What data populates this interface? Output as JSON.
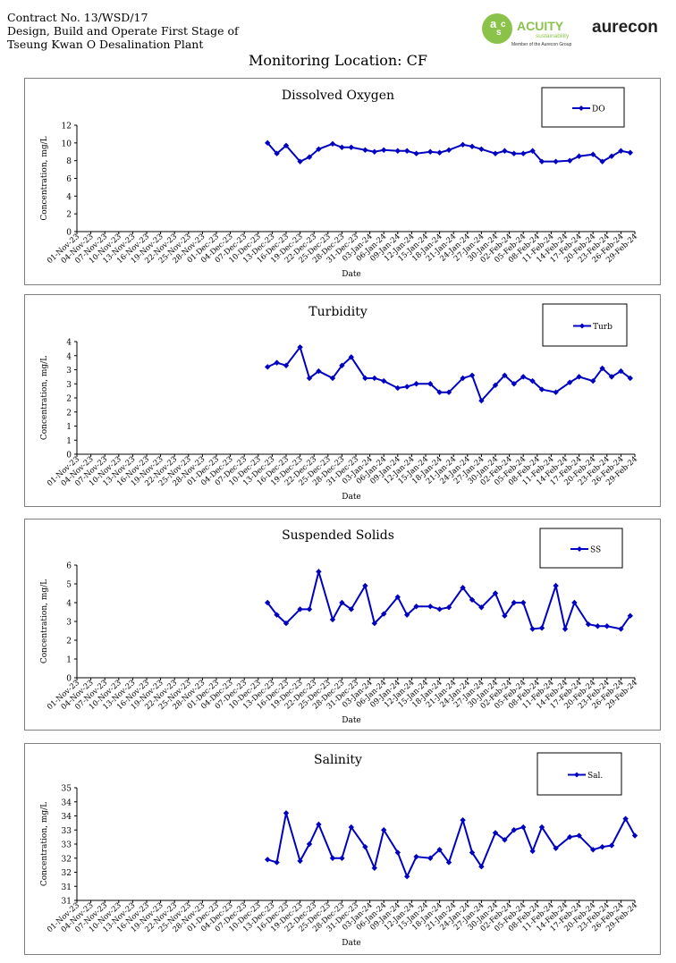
{
  "header": {
    "line1": "Contract No. 13/WSD/17",
    "line2": "Design, Build and Operate First Stage of",
    "line3": "Tseung Kwan O Desalination Plant"
  },
  "logos": {
    "acuity_name": "ACUITY",
    "acuity_sub": "sustainability",
    "acuity_tag": "Member of the Aurecon Group",
    "aurecon": "aurecon",
    "acuity_color": "#8bc34a",
    "aurecon_color": "#222222"
  },
  "page_title": "Monitoring Location: CF",
  "series_color": "#0000c0",
  "chart_data": [
    {
      "type": "line",
      "title": "Dissolved Oxygen",
      "xlabel": "Date",
      "ylabel": "Concentration, mg/L",
      "ylim": [
        0,
        12
      ],
      "yticks": [
        "0",
        "2",
        "4",
        "6",
        "8",
        "10",
        "12"
      ],
      "categories": [
        "01-Nov-23",
        "04-Nov-23",
        "07-Nov-23",
        "10-Nov-23",
        "13-Nov-23",
        "16-Nov-23",
        "19-Nov-23",
        "22-Nov-23",
        "25-Nov-23",
        "28-Nov-23",
        "01-Dec-23",
        "04-Dec-23",
        "07-Dec-23",
        "10-Dec-23",
        "13-Dec-23",
        "16-Dec-23",
        "19-Dec-23",
        "22-Dec-23",
        "25-Dec-23",
        "28-Dec-23",
        "31-Dec-23",
        "03-Jan-24",
        "06-Jan-24",
        "09-Jan-24",
        "12-Jan-24",
        "15-Jan-24",
        "18-Jan-24",
        "21-Jan-24",
        "24-Jan-24",
        "27-Jan-24",
        "30-Jan-24",
        "02-Feb-24",
        "05-Feb-24",
        "08-Feb-24",
        "11-Feb-24",
        "14-Feb-24",
        "17-Feb-24",
        "20-Feb-24",
        "23-Feb-24",
        "26-Feb-24",
        "29-Feb-24"
      ],
      "legend": "DO",
      "legend_position": "top-right",
      "series": [
        {
          "name": "DO",
          "points": [
            [
              "12-Dec-23",
              10.0
            ],
            [
              "14-Dec-23",
              8.8
            ],
            [
              "16-Dec-23",
              9.7
            ],
            [
              "19-Dec-23",
              7.9
            ],
            [
              "21-Dec-23",
              8.4
            ],
            [
              "23-Dec-23",
              9.3
            ],
            [
              "26-Dec-23",
              9.9
            ],
            [
              "28-Dec-23",
              9.5
            ],
            [
              "30-Dec-23",
              9.5
            ],
            [
              "02-Jan-24",
              9.2
            ],
            [
              "04-Jan-24",
              9.0
            ],
            [
              "06-Jan-24",
              9.2
            ],
            [
              "09-Jan-24",
              9.1
            ],
            [
              "11-Jan-24",
              9.1
            ],
            [
              "13-Jan-24",
              8.8
            ],
            [
              "16-Jan-24",
              9.0
            ],
            [
              "18-Jan-24",
              8.9
            ],
            [
              "20-Jan-24",
              9.2
            ],
            [
              "23-Jan-24",
              9.8
            ],
            [
              "25-Jan-24",
              9.6
            ],
            [
              "27-Jan-24",
              9.3
            ],
            [
              "30-Jan-24",
              8.8
            ],
            [
              "01-Feb-24",
              9.1
            ],
            [
              "03-Feb-24",
              8.8
            ],
            [
              "05-Feb-24",
              8.8
            ],
            [
              "07-Feb-24",
              9.1
            ],
            [
              "09-Feb-24",
              7.9
            ],
            [
              "12-Feb-24",
              7.9
            ],
            [
              "15-Feb-24",
              8.0
            ],
            [
              "17-Feb-24",
              8.5
            ],
            [
              "20-Feb-24",
              8.7
            ],
            [
              "22-Feb-24",
              7.9
            ],
            [
              "24-Feb-24",
              8.5
            ],
            [
              "26-Feb-24",
              9.1
            ],
            [
              "28-Feb-24",
              8.9
            ]
          ]
        }
      ]
    },
    {
      "type": "line",
      "title": "Turbidity",
      "xlabel": "Date",
      "ylabel": "Concentration, mg/L",
      "ylim": [
        0,
        4
      ],
      "yticks": [
        "0",
        "1",
        "1",
        "2",
        "2",
        "3",
        "3",
        "4",
        "4"
      ],
      "categories": [
        "01-Nov-23",
        "04-Nov-23",
        "07-Nov-23",
        "10-Nov-23",
        "13-Nov-23",
        "16-Nov-23",
        "19-Nov-23",
        "22-Nov-23",
        "25-Nov-23",
        "28-Nov-23",
        "01-Dec-23",
        "04-Dec-23",
        "07-Dec-23",
        "10-Dec-23",
        "13-Dec-23",
        "16-Dec-23",
        "19-Dec-23",
        "22-Dec-23",
        "25-Dec-23",
        "28-Dec-23",
        "31-Dec-23",
        "03-Jan-24",
        "06-Jan-24",
        "09-Jan-24",
        "12-Jan-24",
        "15-Jan-24",
        "18-Jan-24",
        "21-Jan-24",
        "24-Jan-24",
        "27-Jan-24",
        "30-Jan-24",
        "02-Feb-24",
        "05-Feb-24",
        "08-Feb-24",
        "11-Feb-24",
        "14-Feb-24",
        "17-Feb-24",
        "20-Feb-24",
        "23-Feb-24",
        "26-Feb-24",
        "29-Feb-24"
      ],
      "legend": "Turb",
      "legend_position": "top-right",
      "series": [
        {
          "name": "Turb",
          "points": [
            [
              "12-Dec-23",
              3.1
            ],
            [
              "14-Dec-23",
              3.25
            ],
            [
              "16-Dec-23",
              3.15
            ],
            [
              "19-Dec-23",
              3.8
            ],
            [
              "21-Dec-23",
              2.7
            ],
            [
              "23-Dec-23",
              2.95
            ],
            [
              "26-Dec-23",
              2.7
            ],
            [
              "28-Dec-23",
              3.15
            ],
            [
              "30-Dec-23",
              3.45
            ],
            [
              "02-Jan-24",
              2.7
            ],
            [
              "04-Jan-24",
              2.7
            ],
            [
              "06-Jan-24",
              2.6
            ],
            [
              "09-Jan-24",
              2.35
            ],
            [
              "11-Jan-24",
              2.4
            ],
            [
              "13-Jan-24",
              2.5
            ],
            [
              "16-Jan-24",
              2.5
            ],
            [
              "18-Jan-24",
              2.2
            ],
            [
              "20-Jan-24",
              2.2
            ],
            [
              "23-Jan-24",
              2.7
            ],
            [
              "25-Jan-24",
              2.8
            ],
            [
              "27-Jan-24",
              1.9
            ],
            [
              "30-Jan-24",
              2.45
            ],
            [
              "01-Feb-24",
              2.8
            ],
            [
              "03-Feb-24",
              2.5
            ],
            [
              "05-Feb-24",
              2.75
            ],
            [
              "07-Feb-24",
              2.6
            ],
            [
              "09-Feb-24",
              2.3
            ],
            [
              "12-Feb-24",
              2.2
            ],
            [
              "15-Feb-24",
              2.55
            ],
            [
              "17-Feb-24",
              2.75
            ],
            [
              "20-Feb-24",
              2.6
            ],
            [
              "22-Feb-24",
              3.05
            ],
            [
              "24-Feb-24",
              2.75
            ],
            [
              "26-Feb-24",
              2.95
            ],
            [
              "28-Feb-24",
              2.7
            ]
          ]
        }
      ]
    },
    {
      "type": "line",
      "title": "Suspended Solids",
      "xlabel": "Date",
      "ylabel": "Concentration, mg/L",
      "ylim": [
        0,
        6
      ],
      "yticks": [
        "0",
        "1",
        "2",
        "3",
        "4",
        "5",
        "6"
      ],
      "categories": [
        "01-Nov-23",
        "04-Nov-23",
        "07-Nov-23",
        "10-Nov-23",
        "13-Nov-23",
        "16-Nov-23",
        "19-Nov-23",
        "22-Nov-23",
        "25-Nov-23",
        "28-Nov-23",
        "01-Dec-23",
        "04-Dec-23",
        "07-Dec-23",
        "10-Dec-23",
        "13-Dec-23",
        "16-Dec-23",
        "19-Dec-23",
        "22-Dec-23",
        "25-Dec-23",
        "28-Dec-23",
        "31-Dec-23",
        "03-Jan-24",
        "06-Jan-24",
        "09-Jan-24",
        "12-Jan-24",
        "15-Jan-24",
        "18-Jan-24",
        "21-Jan-24",
        "24-Jan-24",
        "27-Jan-24",
        "30-Jan-24",
        "02-Feb-24",
        "05-Feb-24",
        "08-Feb-24",
        "11-Feb-24",
        "14-Feb-24",
        "17-Feb-24",
        "20-Feb-24",
        "23-Feb-24",
        "26-Feb-24",
        "29-Feb-24"
      ],
      "legend": "SS",
      "legend_position": "top-right",
      "series": [
        {
          "name": "SS",
          "points": [
            [
              "12-Dec-23",
              4.0
            ],
            [
              "14-Dec-23",
              3.35
            ],
            [
              "16-Dec-23",
              2.9
            ],
            [
              "19-Dec-23",
              3.65
            ],
            [
              "21-Dec-23",
              3.65
            ],
            [
              "23-Dec-23",
              5.65
            ],
            [
              "26-Dec-23",
              3.1
            ],
            [
              "28-Dec-23",
              4.0
            ],
            [
              "30-Dec-23",
              3.65
            ],
            [
              "02-Jan-24",
              4.9
            ],
            [
              "04-Jan-24",
              2.9
            ],
            [
              "06-Jan-24",
              3.4
            ],
            [
              "09-Jan-24",
              4.3
            ],
            [
              "11-Jan-24",
              3.35
            ],
            [
              "13-Jan-24",
              3.8
            ],
            [
              "16-Jan-24",
              3.8
            ],
            [
              "18-Jan-24",
              3.65
            ],
            [
              "20-Jan-24",
              3.75
            ],
            [
              "23-Jan-24",
              4.8
            ],
            [
              "25-Jan-24",
              4.15
            ],
            [
              "27-Jan-24",
              3.75
            ],
            [
              "30-Jan-24",
              4.5
            ],
            [
              "01-Feb-24",
              3.3
            ],
            [
              "03-Feb-24",
              4.0
            ],
            [
              "05-Feb-24",
              4.0
            ],
            [
              "07-Feb-24",
              2.6
            ],
            [
              "09-Feb-24",
              2.65
            ],
            [
              "12-Feb-24",
              4.9
            ],
            [
              "14-Feb-24",
              2.6
            ],
            [
              "16-Feb-24",
              4.0
            ],
            [
              "19-Feb-24",
              2.85
            ],
            [
              "21-Feb-24",
              2.75
            ],
            [
              "23-Feb-24",
              2.75
            ],
            [
              "26-Feb-24",
              2.6
            ],
            [
              "28-Feb-24",
              3.3
            ]
          ]
        }
      ]
    },
    {
      "type": "line",
      "title": "Salinity",
      "xlabel": "Date",
      "ylabel": "Concentration, mg/L",
      "ylim": [
        31,
        35
      ],
      "yticks": [
        "31",
        "31",
        "32",
        "32",
        "33",
        "33",
        "34",
        "34",
        "35"
      ],
      "categories": [
        "01-Nov-23",
        "04-Nov-23",
        "07-Nov-23",
        "10-Nov-23",
        "13-Nov-23",
        "16-Nov-23",
        "19-Nov-23",
        "22-Nov-23",
        "25-Nov-23",
        "28-Nov-23",
        "01-Dec-23",
        "04-Dec-23",
        "07-Dec-23",
        "10-Dec-23",
        "13-Dec-23",
        "16-Dec-23",
        "19-Dec-23",
        "22-Dec-23",
        "25-Dec-23",
        "28-Dec-23",
        "31-Dec-23",
        "03-Jan-24",
        "06-Jan-24",
        "09-Jan-24",
        "12-Jan-24",
        "15-Jan-24",
        "18-Jan-24",
        "21-Jan-24",
        "24-Jan-24",
        "27-Jan-24",
        "30-Jan-24",
        "02-Feb-24",
        "05-Feb-24",
        "08-Feb-24",
        "11-Feb-24",
        "14-Feb-24",
        "17-Feb-24",
        "20-Feb-24",
        "23-Feb-24",
        "26-Feb-24",
        "29-Feb-24"
      ],
      "legend": "Sal.",
      "legend_position": "top-right",
      "series": [
        {
          "name": "Sal.",
          "points": [
            [
              "12-Dec-23",
              32.45
            ],
            [
              "14-Dec-23",
              32.35
            ],
            [
              "16-Dec-23",
              34.1
            ],
            [
              "19-Dec-23",
              32.4
            ],
            [
              "21-Dec-23",
              33.0
            ],
            [
              "23-Dec-23",
              33.7
            ],
            [
              "26-Dec-23",
              32.5
            ],
            [
              "28-Dec-23",
              32.5
            ],
            [
              "30-Dec-23",
              33.6
            ],
            [
              "02-Jan-24",
              32.9
            ],
            [
              "04-Jan-24",
              32.15
            ],
            [
              "06-Jan-24",
              33.5
            ],
            [
              "09-Jan-24",
              32.7
            ],
            [
              "11-Jan-24",
              31.85
            ],
            [
              "13-Jan-24",
              32.55
            ],
            [
              "16-Jan-24",
              32.5
            ],
            [
              "18-Jan-24",
              32.8
            ],
            [
              "20-Jan-24",
              32.35
            ],
            [
              "23-Jan-24",
              33.85
            ],
            [
              "25-Jan-24",
              32.7
            ],
            [
              "27-Jan-24",
              32.2
            ],
            [
              "30-Jan-24",
              33.4
            ],
            [
              "01-Feb-24",
              33.15
            ],
            [
              "03-Feb-24",
              33.5
            ],
            [
              "05-Feb-24",
              33.6
            ],
            [
              "07-Feb-24",
              32.75
            ],
            [
              "09-Feb-24",
              33.6
            ],
            [
              "12-Feb-24",
              32.85
            ],
            [
              "15-Feb-24",
              33.25
            ],
            [
              "17-Feb-24",
              33.3
            ],
            [
              "20-Feb-24",
              32.8
            ],
            [
              "22-Feb-24",
              32.9
            ],
            [
              "24-Feb-24",
              32.95
            ],
            [
              "27-Feb-24",
              33.9
            ],
            [
              "29-Feb-24",
              33.3
            ]
          ]
        }
      ]
    }
  ]
}
